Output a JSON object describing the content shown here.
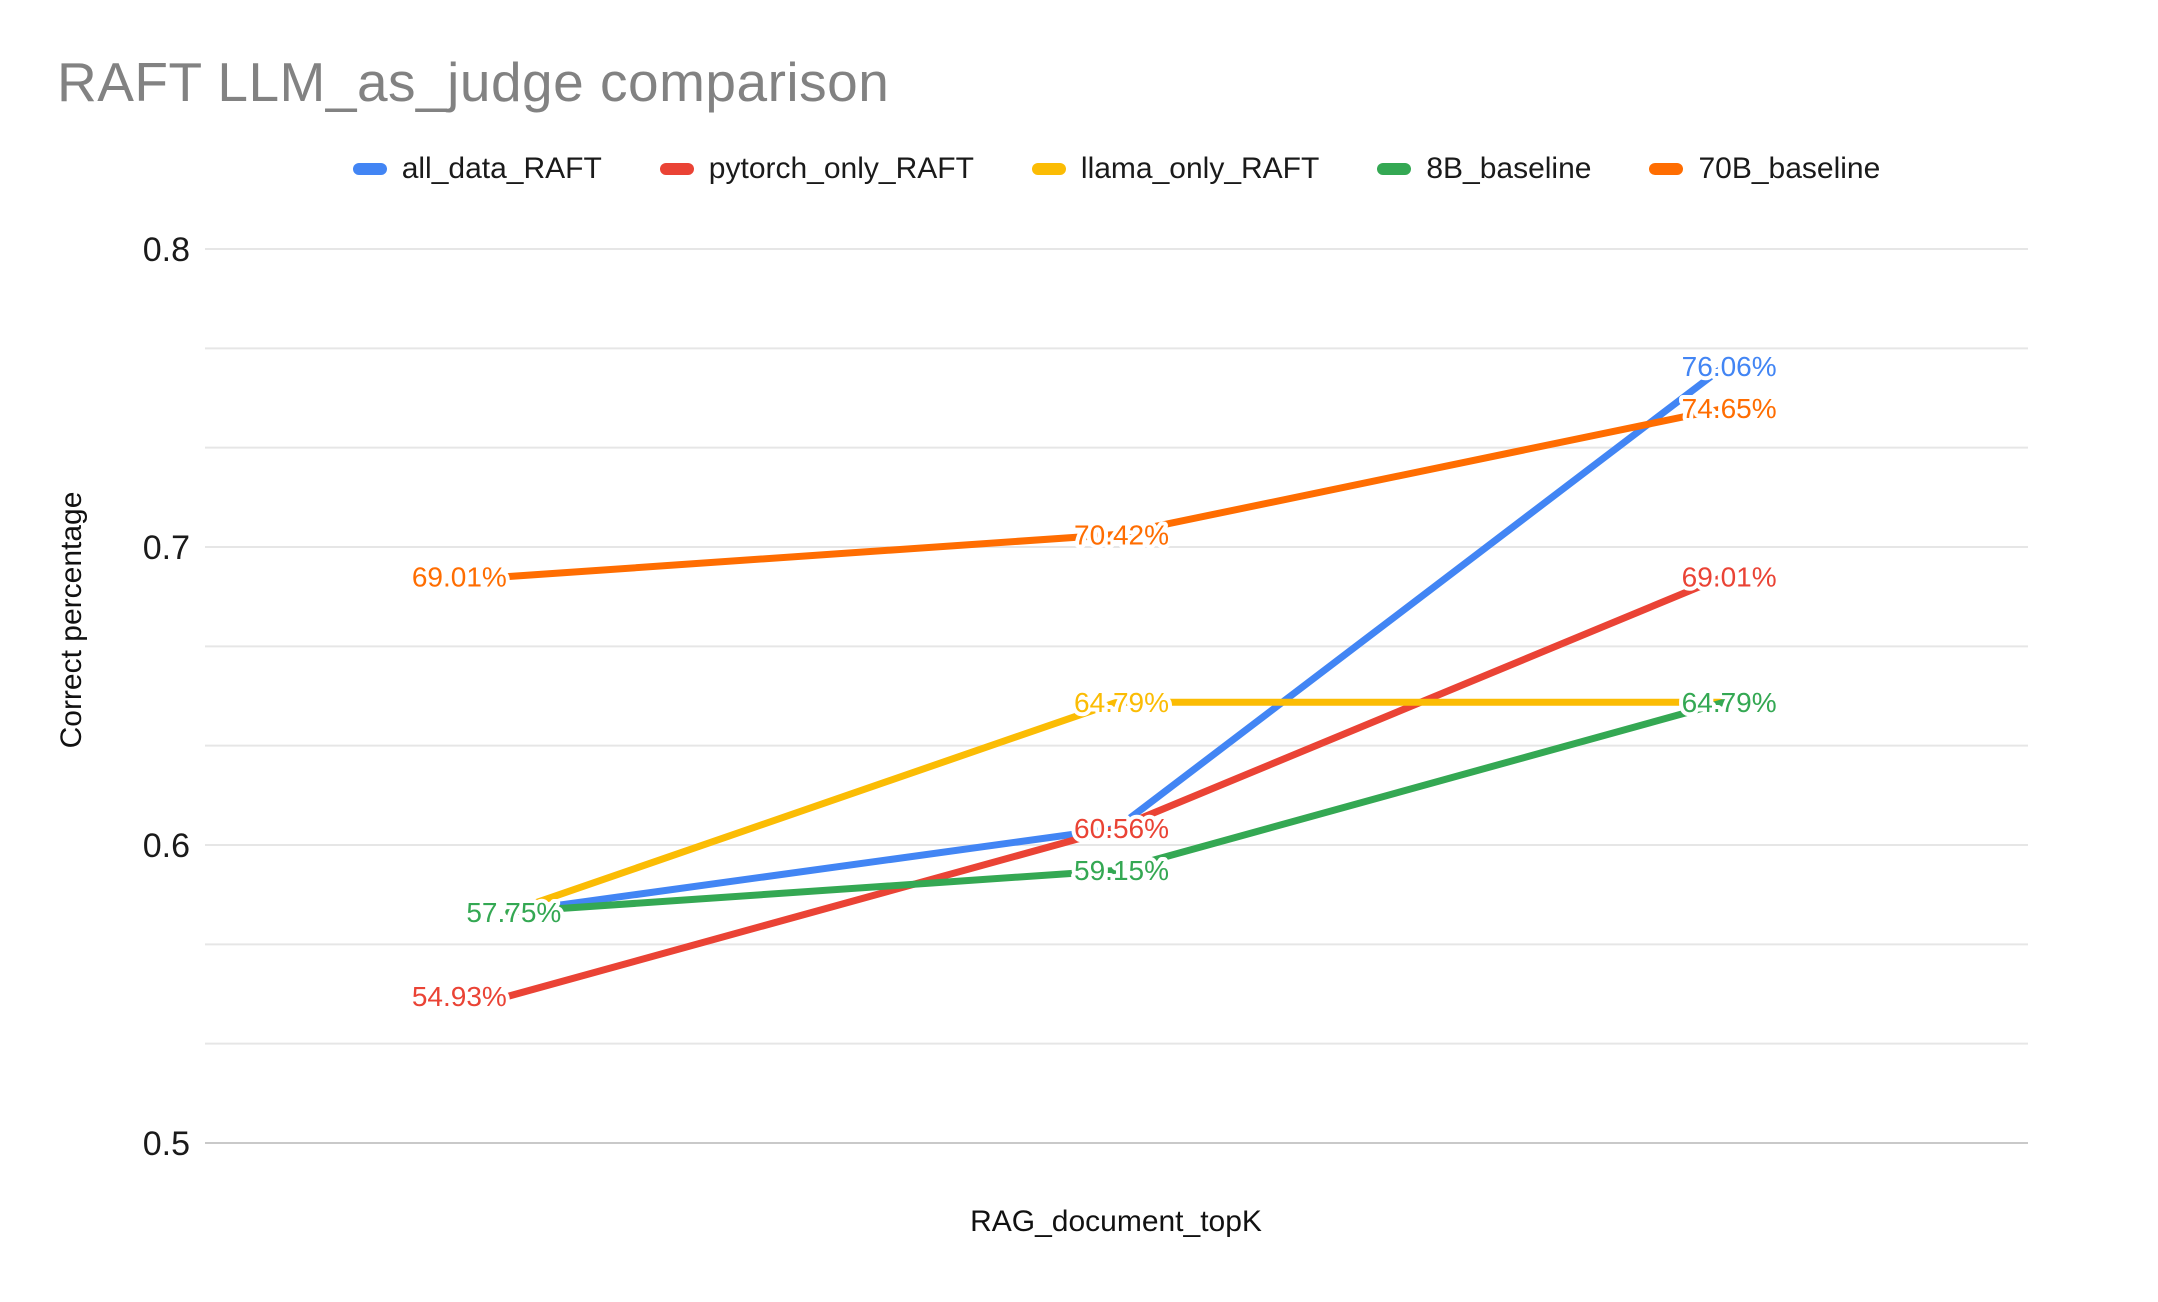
{
  "title": "RAFT LLM_as_judge comparison",
  "axes": {
    "y_title": "Correct percentage",
    "x_title": "RAG_document_topK",
    "y_tick_labels": [
      "0.8",
      "0.7",
      "0.6",
      "0.5"
    ]
  },
  "style_colors": {
    "title_text": "#828282",
    "tick_text": "#1a1a1a",
    "legend_text": "#1a1a1a",
    "gridline": "#e6e6e6",
    "axis_baseline": "#c9c9c9",
    "background": "#ffffff"
  },
  "chart_data": {
    "type": "line",
    "title": "RAFT LLM_as_judge comparison",
    "xlabel": "RAG_document_topK",
    "ylabel": "Correct percentage",
    "x_points": 3,
    "x_tick_labels": [
      "",
      "",
      ""
    ],
    "ylim": [
      0.5,
      0.8
    ],
    "y_major_ticks": [
      0.8,
      0.7,
      0.6,
      0.5
    ],
    "y_minor_per_major": 3,
    "grid": true,
    "legend_position": "top",
    "series": [
      {
        "name": "all_data_RAFT",
        "color": "#4285F4",
        "values": [
          0.5775,
          0.6056,
          0.7606
        ],
        "point_labels": [
          {
            "text": "57.75%",
            "visible": false,
            "placement": "center"
          },
          {
            "text": "60.56%",
            "visible": false,
            "placement": "center"
          },
          {
            "text": "76.06%",
            "visible": true,
            "placement": "center"
          }
        ]
      },
      {
        "name": "pytorch_only_RAFT",
        "color": "#EA4335",
        "values": [
          0.5493,
          0.6056,
          0.6901
        ],
        "point_labels": [
          {
            "text": "54.93%",
            "visible": true,
            "placement": "left"
          },
          {
            "text": "60.56%",
            "visible": true,
            "placement": "center"
          },
          {
            "text": "69.01%",
            "visible": true,
            "placement": "center"
          }
        ]
      },
      {
        "name": "llama_only_RAFT",
        "color": "#FBBC04",
        "values": [
          0.5775,
          0.6479,
          0.6479
        ],
        "point_labels": [
          {
            "text": "57.75%",
            "visible": false,
            "placement": "center"
          },
          {
            "text": "64.79%",
            "visible": true,
            "placement": "center"
          },
          {
            "text": "64.79%",
            "visible": false,
            "placement": "center"
          }
        ]
      },
      {
        "name": "8B_baseline",
        "color": "#34A853",
        "values": [
          0.5775,
          0.5915,
          0.6479
        ],
        "point_labels": [
          {
            "text": "57.75%",
            "visible": true,
            "placement": "center"
          },
          {
            "text": "59.15%",
            "visible": true,
            "placement": "center"
          },
          {
            "text": "64.79%",
            "visible": true,
            "placement": "center"
          }
        ]
      },
      {
        "name": "70B_baseline",
        "color": "#FF6D01",
        "values": [
          0.6901,
          0.7042,
          0.7465
        ],
        "point_labels": [
          {
            "text": "69.01%",
            "visible": true,
            "placement": "left"
          },
          {
            "text": "70.42%",
            "visible": true,
            "placement": "center"
          },
          {
            "text": "74.65%",
            "visible": true,
            "placement": "center"
          }
        ]
      }
    ]
  }
}
